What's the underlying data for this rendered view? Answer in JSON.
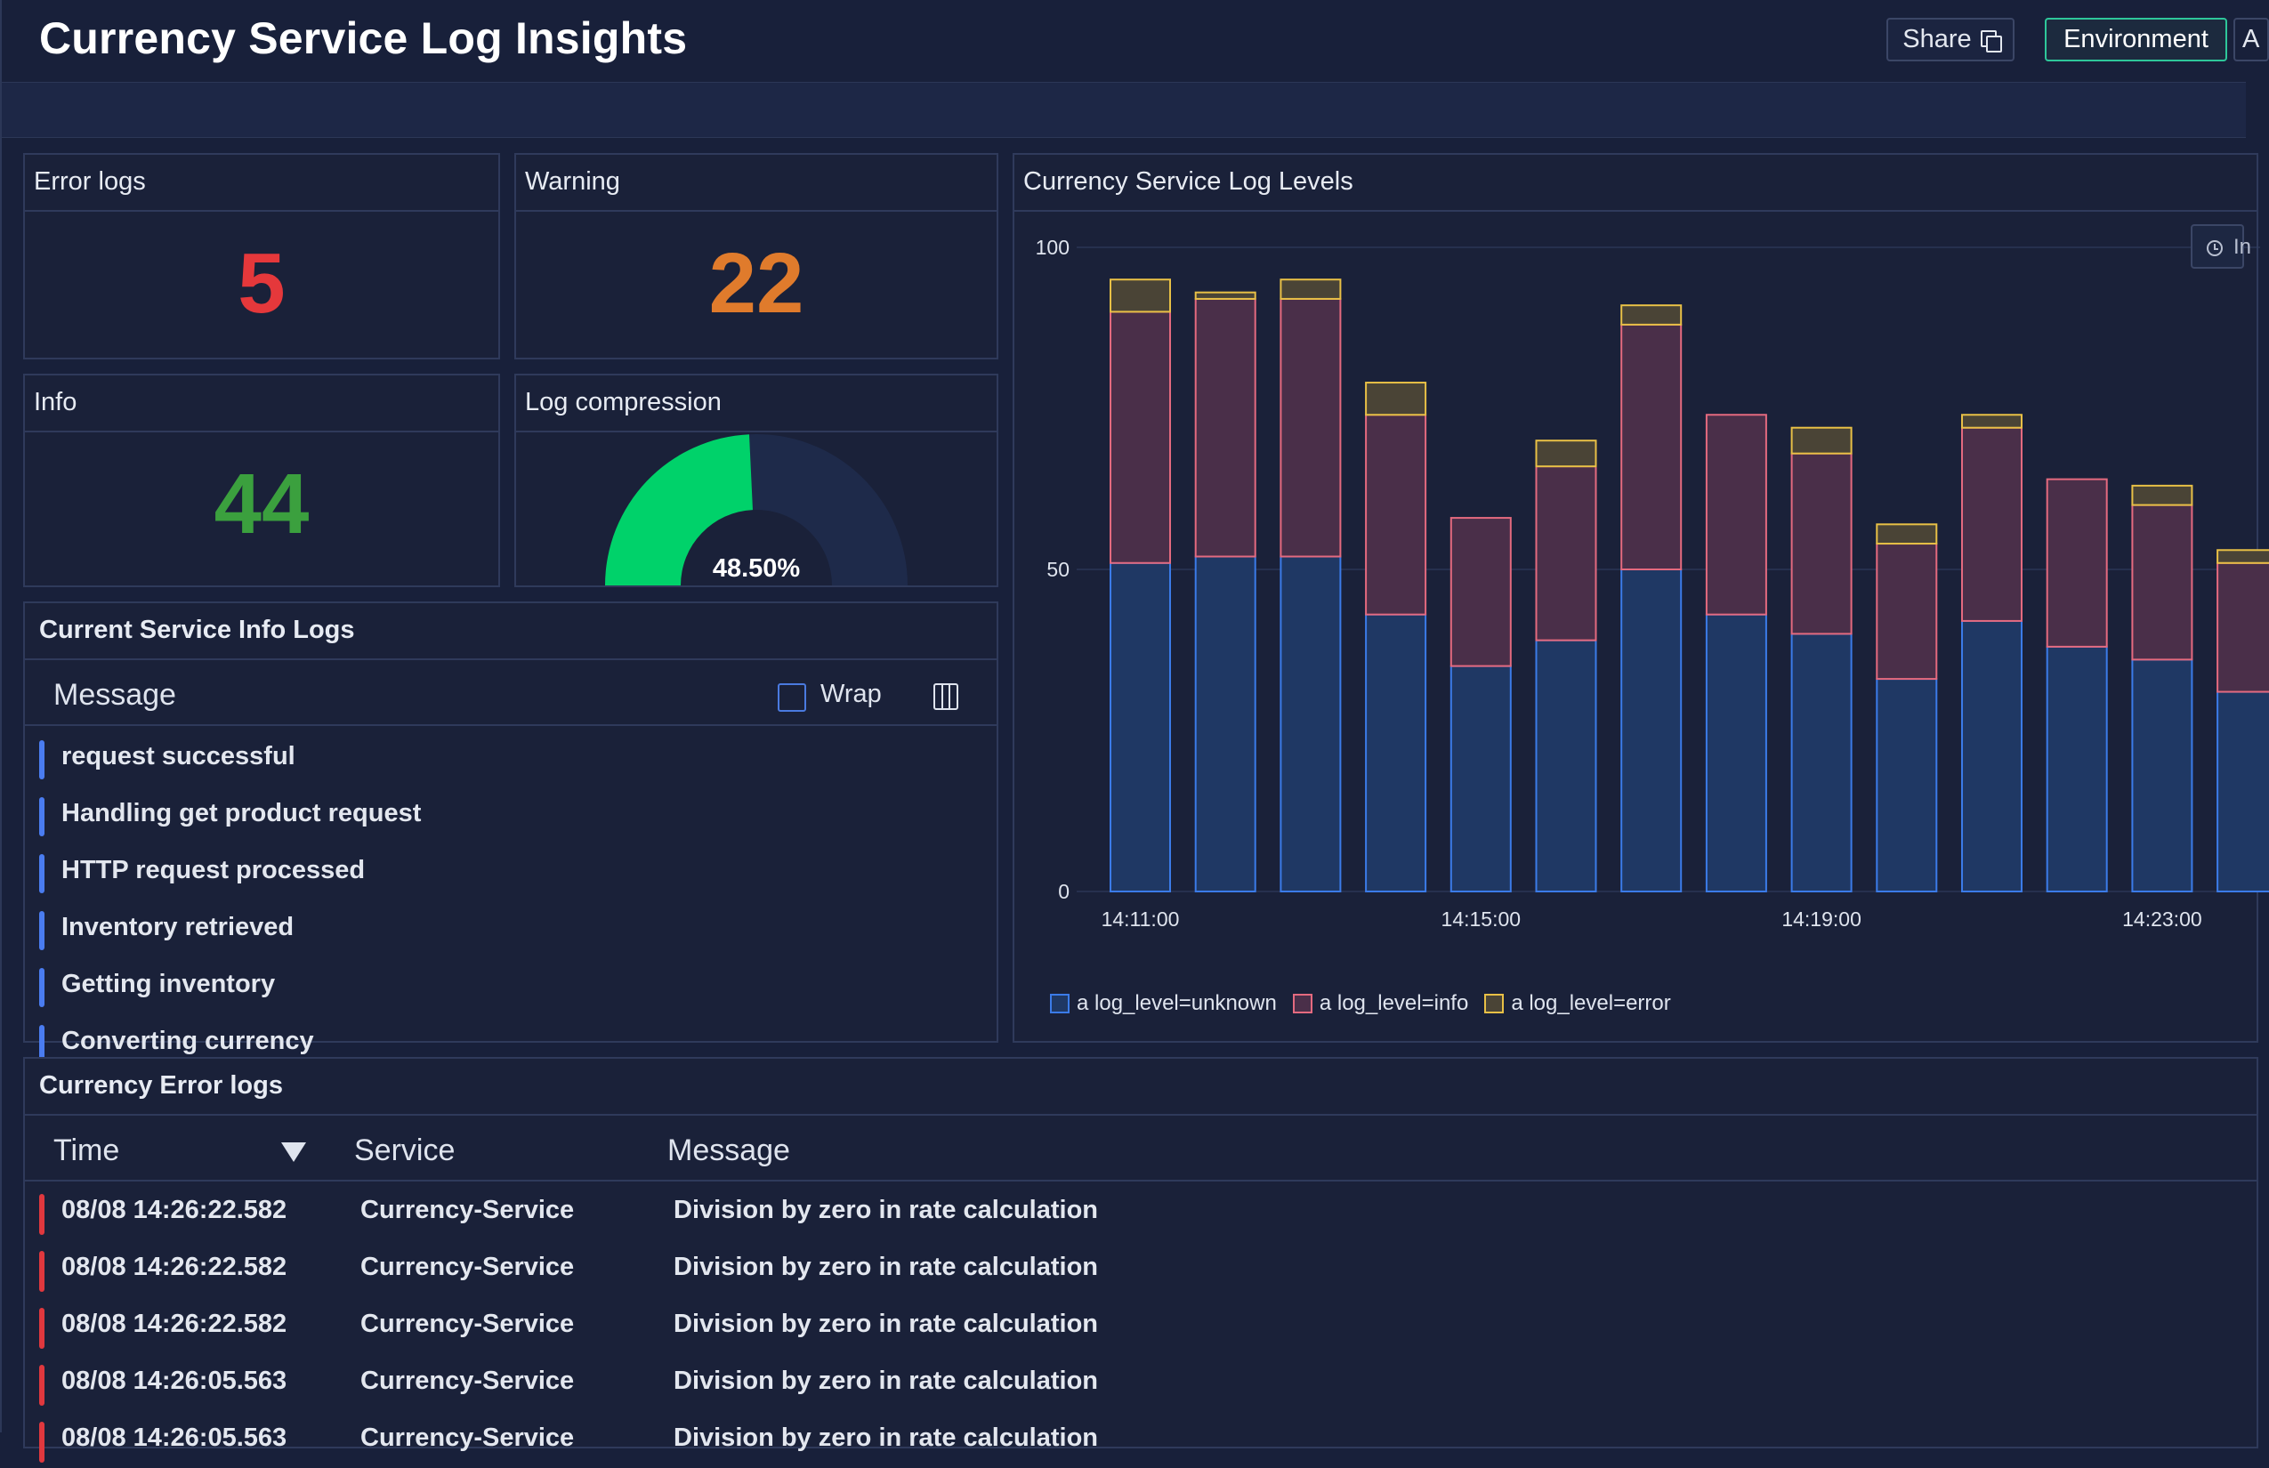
{
  "header": {
    "title": "Currency Service Log Insights",
    "share_label": "Share",
    "environment_label": "Environment",
    "cut_label": "A"
  },
  "stats": {
    "error_logs": {
      "label": "Error logs",
      "value": "5",
      "color": "#e5383b"
    },
    "warning": {
      "label": "Warning",
      "value": "22",
      "color": "#e07b2c"
    },
    "info": {
      "label": "Info",
      "value": "44",
      "color": "#3ba03e"
    }
  },
  "compression": {
    "label": "Log compression",
    "value_text": "48.50%",
    "percent": 48.5,
    "fill_color": "#00d26a",
    "track_color": "#1e2a4a"
  },
  "info_logs": {
    "title": "Current Service Info Logs",
    "column_message": "Message",
    "wrap_label": "Wrap",
    "rows": [
      "request successful",
      "Handling get product request",
      "HTTP request processed",
      "Inventory retrieved",
      "Getting inventory",
      "Converting currency"
    ]
  },
  "chart": {
    "time_button_label": "In"
  },
  "chart_data": {
    "type": "bar",
    "stacked": true,
    "title": "Currency Service Log Levels",
    "categories": [
      "14:11:00",
      "",
      "",
      "",
      "14:15:00",
      "",
      "",
      "",
      "14:19:00",
      "",
      "",
      "",
      "14:23:00",
      ""
    ],
    "x_tick_labels": [
      "14:11:00",
      "14:15:00",
      "14:19:00",
      "14:23:00"
    ],
    "ylim": [
      0,
      100
    ],
    "y_ticks": [
      0,
      50,
      100
    ],
    "series": [
      {
        "name": "a log_level=unknown",
        "color": "#3b7be8",
        "fill": "#1f3864",
        "values": [
          51,
          52,
          52,
          43,
          35,
          39,
          50,
          43,
          40,
          33,
          42,
          38,
          36,
          31
        ]
      },
      {
        "name": "a log_level=info",
        "color": "#e46a7f",
        "fill": "#4a2f49",
        "values": [
          39,
          40,
          40,
          31,
          23,
          27,
          38,
          31,
          28,
          21,
          30,
          26,
          24,
          20
        ]
      },
      {
        "name": "a log_level=error",
        "color": "#e8c046",
        "fill": "#4a4436",
        "values": [
          5,
          1,
          3,
          5,
          0,
          4,
          3,
          0,
          4,
          3,
          2,
          0,
          3,
          2
        ]
      }
    ],
    "legend_position": "bottom-left"
  },
  "error_logs": {
    "title": "Currency Error logs",
    "columns": {
      "time": "Time",
      "service": "Service",
      "message": "Message"
    },
    "rows": [
      {
        "time": "08/08 14:26:22.582",
        "service": "Currency-Service",
        "message": "Division by zero in rate calculation"
      },
      {
        "time": "08/08 14:26:22.582",
        "service": "Currency-Service",
        "message": "Division by zero in rate calculation"
      },
      {
        "time": "08/08 14:26:22.582",
        "service": "Currency-Service",
        "message": "Division by zero in rate calculation"
      },
      {
        "time": "08/08 14:26:05.563",
        "service": "Currency-Service",
        "message": "Division by zero in rate calculation"
      },
      {
        "time": "08/08 14:26:05.563",
        "service": "Currency-Service",
        "message": "Division by zero in rate calculation"
      }
    ]
  }
}
